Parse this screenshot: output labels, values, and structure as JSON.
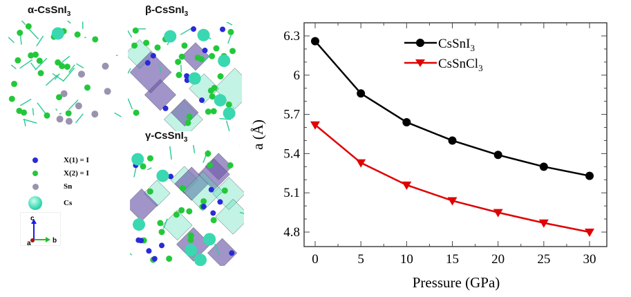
{
  "structures": {
    "alpha": {
      "base": "α-CsSnI",
      "sub": "3"
    },
    "beta": {
      "base": "β-CsSnI",
      "sub": "3"
    },
    "gamma": {
      "base": "γ-CsSnI",
      "sub": "3"
    }
  },
  "atom_legend": [
    {
      "label": "X(1) = I",
      "color": "#2a2ad8"
    },
    {
      "label": "X(2) = I",
      "color": "#22c83a"
    },
    {
      "label": "Sn",
      "color": "#9a93ad"
    },
    {
      "label": "Cs",
      "color": "#3ad8b0"
    }
  ],
  "axes_indicator": {
    "a": "a",
    "b": "b",
    "c": "c"
  },
  "chart_data": {
    "type": "line",
    "xlabel": "Pressure (GPa)",
    "ylabel": "a (Å)",
    "x": [
      0,
      5,
      10,
      15,
      20,
      25,
      30
    ],
    "xlim": [
      0,
      30
    ],
    "ylim": [
      4.8,
      6.3
    ],
    "xticks": [
      "0",
      "5",
      "10",
      "15",
      "20",
      "25",
      "30"
    ],
    "yticks": [
      "4.8",
      "5.1",
      "5.4",
      "5.7",
      "6",
      "6.3"
    ],
    "legend_position": "top-center",
    "series": [
      {
        "name": "CsSnI",
        "sub": "3",
        "color": "#000000",
        "marker": "circle",
        "values": [
          6.26,
          5.86,
          5.64,
          5.5,
          5.39,
          5.3,
          5.23
        ]
      },
      {
        "name": "CsSnCl",
        "sub": "3",
        "color": "#e00000",
        "marker": "triangle-down",
        "values": [
          5.62,
          5.33,
          5.16,
          5.04,
          4.95,
          4.87,
          4.8
        ]
      }
    ]
  }
}
